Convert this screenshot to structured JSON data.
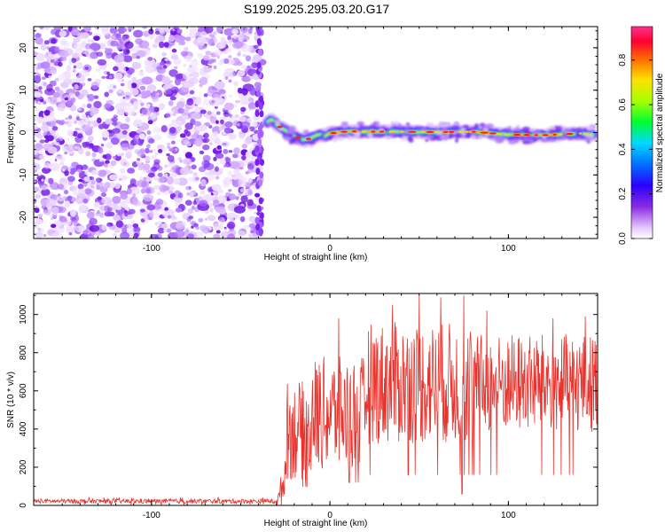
{
  "title": "S199.2025.295.03.20.G17",
  "chart_data": [
    {
      "type": "heatmap",
      "xlabel": "Height of straight line (km)",
      "ylabel": "Frequency (Hz)",
      "xlim": [
        -166,
        150
      ],
      "ylim": [
        -25,
        25
      ],
      "xticks": [
        -100,
        0,
        100
      ],
      "yticks": [
        -20,
        -10,
        0,
        10,
        20
      ],
      "noise_region_x": [
        -166,
        -38
      ],
      "signal_start_x": -35,
      "signal_track": {
        "x": [
          -35,
          -33,
          -30,
          -27,
          -24,
          -21,
          -18,
          -15,
          -12,
          -9,
          -6,
          -3,
          0,
          10,
          20,
          40,
          60,
          80,
          100,
          120,
          140,
          148
        ],
        "y": [
          2.5,
          3.2,
          2.0,
          1.0,
          0.3,
          -0.6,
          -1.2,
          -1.6,
          -1.5,
          -1.0,
          -0.4,
          -0.8,
          -0.2,
          0.3,
          0.2,
          0.2,
          0.1,
          0.2,
          -0.5,
          -0.6,
          -0.2,
          -0.5
        ]
      },
      "colorbar": {
        "label": "Normalized spectral amplitude",
        "ticks": [
          0.0,
          0.2,
          0.4,
          0.6,
          0.8
        ],
        "range": [
          0,
          0.95
        ]
      }
    },
    {
      "type": "line",
      "xlabel": "Height of straight line (km)",
      "ylabel": "SNR (10 * v/v)",
      "xlim": [
        -166,
        150
      ],
      "ylim": [
        0,
        1110
      ],
      "xticks": [
        -100,
        0,
        100
      ],
      "yticks": [
        0,
        200,
        400,
        600,
        800,
        1000
      ],
      "line_color": "#e8332d",
      "segments": [
        {
          "x_range": [
            -166,
            -30
          ],
          "mean": 22,
          "spread": 12
        },
        {
          "x_range": [
            -30,
            -25
          ],
          "mean": 150,
          "spread": 160
        },
        {
          "x_range": [
            -25,
            -10
          ],
          "mean": 390,
          "spread": 260
        },
        {
          "x_range": [
            -10,
            20
          ],
          "mean": 480,
          "spread": 300
        },
        {
          "x_range": [
            20,
            80
          ],
          "mean": 640,
          "spread": 320
        },
        {
          "x_range": [
            80,
            150
          ],
          "mean": 640,
          "spread": 260
        }
      ],
      "peaks": [
        {
          "x": 5,
          "y": 980
        },
        {
          "x": 35,
          "y": 1050
        },
        {
          "x": 50,
          "y": 1100
        },
        {
          "x": 62,
          "y": 1090
        },
        {
          "x": 75,
          "y": 1100
        },
        {
          "x": 88,
          "y": 1020
        },
        {
          "x": 125,
          "y": 980
        },
        {
          "x": 143,
          "y": 990
        },
        {
          "x": 74,
          "y": 60
        },
        {
          "x": 5,
          "y": 30
        }
      ]
    }
  ]
}
